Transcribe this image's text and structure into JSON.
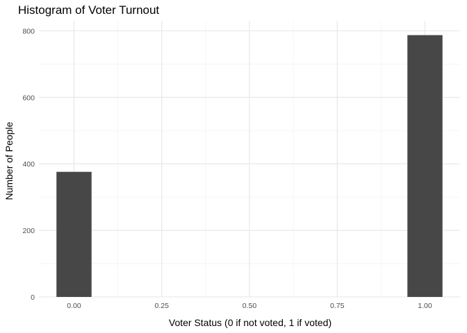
{
  "chart_data": {
    "type": "bar",
    "title": "Histogram of Voter Turnout",
    "xlabel": "Voter Status (0 if not voted, 1 if voted)",
    "ylabel": "Number of People",
    "x_ticks": [
      0.0,
      0.25,
      0.5,
      0.75,
      1.0
    ],
    "x_tick_labels": [
      "0.00",
      "0.25",
      "0.50",
      "0.75",
      "1.00"
    ],
    "y_ticks": [
      0,
      200,
      400,
      600,
      800
    ],
    "y_tick_labels": [
      "0",
      "200",
      "400",
      "600",
      "800"
    ],
    "xlim": [
      -0.1,
      1.1
    ],
    "ylim": [
      0,
      830
    ],
    "bin_width": 0.1,
    "bins": [
      {
        "x": 0.0,
        "value": 376
      },
      {
        "x": 1.0,
        "value": 787
      }
    ],
    "grid": true,
    "legend": "none",
    "colors": {
      "bar": "#474747",
      "grid_major": "#e5e5e5",
      "grid_minor": "#f2f2f2"
    }
  }
}
